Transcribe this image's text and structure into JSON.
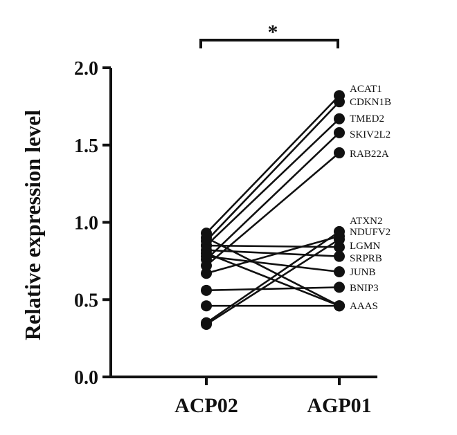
{
  "chart_data": {
    "type": "line",
    "ylabel": "Relative expression level",
    "categories": [
      "ACP02",
      "AGP01"
    ],
    "ylim": [
      0.0,
      2.0
    ],
    "yticks": [
      "0.0",
      "0.5",
      "1.0",
      "1.5",
      "2.0"
    ],
    "significance": "*",
    "series": [
      {
        "name": "ACAT1",
        "values": [
          0.93,
          1.82
        ]
      },
      {
        "name": "CDKN1B",
        "values": [
          0.88,
          1.78
        ]
      },
      {
        "name": "TMED2",
        "values": [
          0.85,
          1.67
        ]
      },
      {
        "name": "SKIV2L2",
        "values": [
          0.76,
          1.58
        ]
      },
      {
        "name": "RAB22A",
        "values": [
          0.72,
          1.45
        ]
      },
      {
        "name": "ATXN2",
        "values": [
          0.35,
          0.94
        ]
      },
      {
        "name": "NDUFV2",
        "values": [
          0.67,
          0.91
        ]
      },
      {
        "name": "LGMN",
        "values": [
          0.85,
          0.84
        ]
      },
      {
        "name": "SRPRB",
        "values": [
          0.82,
          0.78
        ]
      },
      {
        "name": "JUNB",
        "values": [
          0.78,
          0.68
        ]
      },
      {
        "name": "BNIP3",
        "values": [
          0.56,
          0.58
        ]
      },
      {
        "name": "AAAS",
        "values": [
          0.9,
          0.46
        ]
      },
      {
        "name": "",
        "values": [
          0.8,
          0.46
        ]
      },
      {
        "name": "",
        "values": [
          0.46,
          0.46
        ]
      },
      {
        "name": "",
        "values": [
          0.34,
          0.89
        ]
      }
    ]
  }
}
